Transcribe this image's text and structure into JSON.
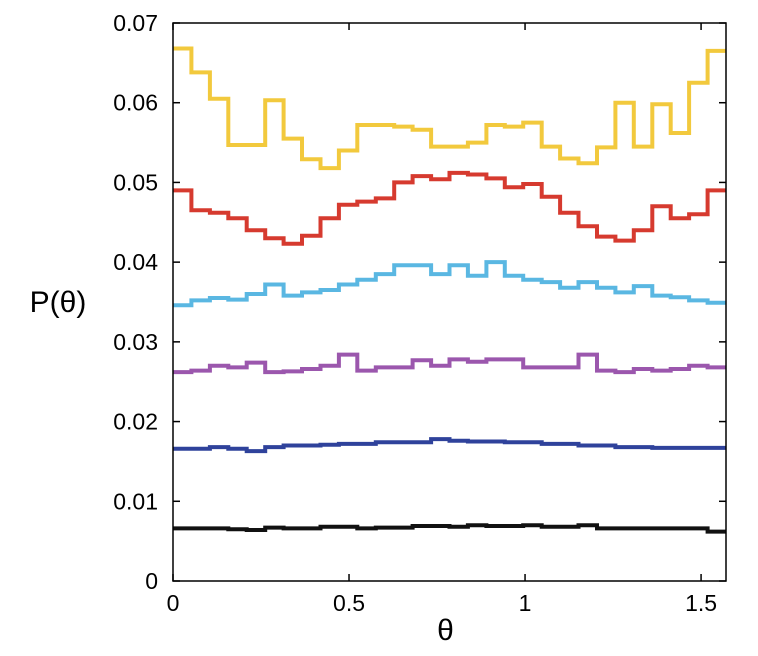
{
  "chart_data": {
    "type": "line",
    "step": true,
    "xlabel": "θ",
    "ylabel": "P(θ)",
    "xlim": [
      0,
      1.5708
    ],
    "ylim": [
      0,
      0.07
    ],
    "x_ticks": [
      {
        "value": 0,
        "label": "0"
      },
      {
        "value": 0.5,
        "label": "0.5"
      },
      {
        "value": 1.0,
        "label": "1"
      },
      {
        "value": 1.5,
        "label": "1.5"
      }
    ],
    "y_ticks": [
      {
        "value": 0,
        "label": "0"
      },
      {
        "value": 0.01,
        "label": "0.01"
      },
      {
        "value": 0.02,
        "label": "0.02"
      },
      {
        "value": 0.03,
        "label": "0.03"
      },
      {
        "value": 0.04,
        "label": "0.04"
      },
      {
        "value": 0.05,
        "label": "0.05"
      },
      {
        "value": 0.06,
        "label": "0.06"
      },
      {
        "value": 0.07,
        "label": "0.07"
      }
    ],
    "grid": false,
    "bin_edges": [
      0,
      0.0524,
      0.1047,
      0.1571,
      0.2094,
      0.2618,
      0.3142,
      0.3665,
      0.4189,
      0.4712,
      0.5236,
      0.576,
      0.6283,
      0.6807,
      0.733,
      0.7854,
      0.8378,
      0.8901,
      0.9425,
      0.9948,
      1.0472,
      1.0996,
      1.1519,
      1.2043,
      1.2566,
      1.309,
      1.3614,
      1.4137,
      1.4661,
      1.5184,
      1.5708
    ],
    "series": [
      {
        "color": "#f2c93d",
        "values": [
          0.0668,
          0.0638,
          0.0605,
          0.0547,
          0.0547,
          0.0603,
          0.0555,
          0.0529,
          0.0518,
          0.054,
          0.0572,
          0.0572,
          0.057,
          0.0566,
          0.0545,
          0.0545,
          0.055,
          0.0572,
          0.057,
          0.0575,
          0.0545,
          0.053,
          0.0524,
          0.0544,
          0.06,
          0.0545,
          0.0598,
          0.0562,
          0.0625,
          0.0665
        ]
      },
      {
        "color": "#d63a2f",
        "values": [
          0.049,
          0.0465,
          0.0462,
          0.0455,
          0.044,
          0.043,
          0.0423,
          0.0433,
          0.0455,
          0.0472,
          0.0476,
          0.048,
          0.05,
          0.0508,
          0.0504,
          0.0512,
          0.051,
          0.0505,
          0.0494,
          0.0498,
          0.0482,
          0.0462,
          0.0445,
          0.0432,
          0.0427,
          0.044,
          0.047,
          0.0455,
          0.046,
          0.049
        ]
      },
      {
        "color": "#5ab7e2",
        "values": [
          0.0346,
          0.0352,
          0.0355,
          0.0353,
          0.036,
          0.0372,
          0.0358,
          0.0362,
          0.0365,
          0.0372,
          0.0378,
          0.0385,
          0.0396,
          0.0396,
          0.0385,
          0.0396,
          0.0383,
          0.04,
          0.0383,
          0.0378,
          0.0375,
          0.0368,
          0.0375,
          0.0368,
          0.0362,
          0.037,
          0.0358,
          0.0356,
          0.0352,
          0.0349
        ]
      },
      {
        "color": "#9b57ad",
        "values": [
          0.0262,
          0.0264,
          0.027,
          0.0268,
          0.0274,
          0.0262,
          0.0263,
          0.0266,
          0.027,
          0.0284,
          0.0264,
          0.0268,
          0.0268,
          0.0277,
          0.027,
          0.0278,
          0.0275,
          0.0278,
          0.0278,
          0.0268,
          0.0268,
          0.0268,
          0.0284,
          0.0264,
          0.0262,
          0.0266,
          0.0264,
          0.0266,
          0.027,
          0.0268
        ]
      },
      {
        "color": "#2f429b",
        "values": [
          0.0166,
          0.0166,
          0.0168,
          0.0166,
          0.0163,
          0.0168,
          0.017,
          0.017,
          0.0171,
          0.0172,
          0.0172,
          0.0174,
          0.0174,
          0.0174,
          0.0178,
          0.0176,
          0.0175,
          0.0175,
          0.0174,
          0.0174,
          0.0172,
          0.0172,
          0.017,
          0.017,
          0.0168,
          0.0168,
          0.0167,
          0.0167,
          0.0167,
          0.0167
        ]
      },
      {
        "color": "#111111",
        "values": [
          0.0066,
          0.0066,
          0.0066,
          0.0065,
          0.0064,
          0.0067,
          0.0066,
          0.0066,
          0.0068,
          0.0068,
          0.0066,
          0.0067,
          0.0067,
          0.0069,
          0.0069,
          0.0068,
          0.007,
          0.0069,
          0.0069,
          0.007,
          0.0068,
          0.0068,
          0.007,
          0.0066,
          0.0066,
          0.0066,
          0.0066,
          0.0066,
          0.0066,
          0.0062
        ]
      }
    ]
  }
}
